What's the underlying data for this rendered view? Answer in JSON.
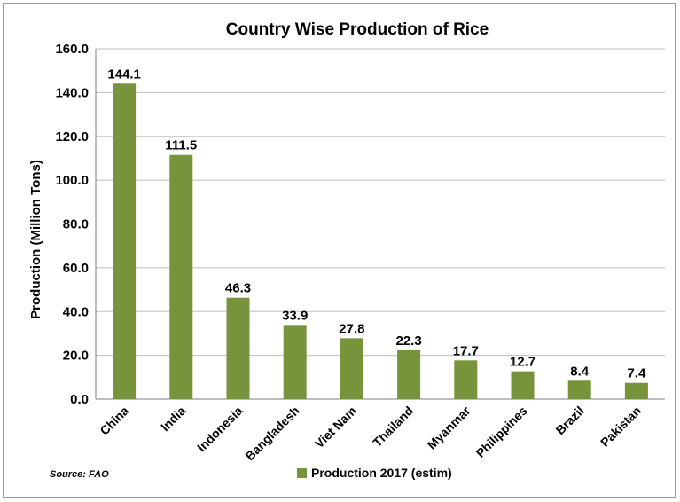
{
  "chart_data": {
    "type": "bar",
    "title": "Country Wise Production of Rice",
    "xlabel": "",
    "ylabel": "Production  (Million Tons)",
    "ylim": [
      0,
      160
    ],
    "yticks": [
      "0.0",
      "20.0",
      "40.0",
      "60.0",
      "80.0",
      "100.0",
      "120.0",
      "140.0",
      "160.0"
    ],
    "categories": [
      "China",
      "India",
      "Indonesia",
      "Bangladesh",
      "Viet Nam",
      "Thailand",
      "Myanmar",
      "Philippines",
      "Brazil",
      "Pakistan"
    ],
    "series": [
      {
        "name": "Production 2017 (estim)",
        "values": [
          144.1,
          111.5,
          46.3,
          33.9,
          27.8,
          22.3,
          17.7,
          12.7,
          8.4,
          7.4
        ],
        "data_labels": [
          "144.1",
          "111.5",
          "46.3",
          "33.9",
          "27.8",
          "22.3",
          "17.7",
          "12.7",
          "8.4",
          "7.4"
        ],
        "color": "#77933c"
      }
    ],
    "grid": true,
    "legend_position": "bottom",
    "source": "Source: FAO"
  }
}
